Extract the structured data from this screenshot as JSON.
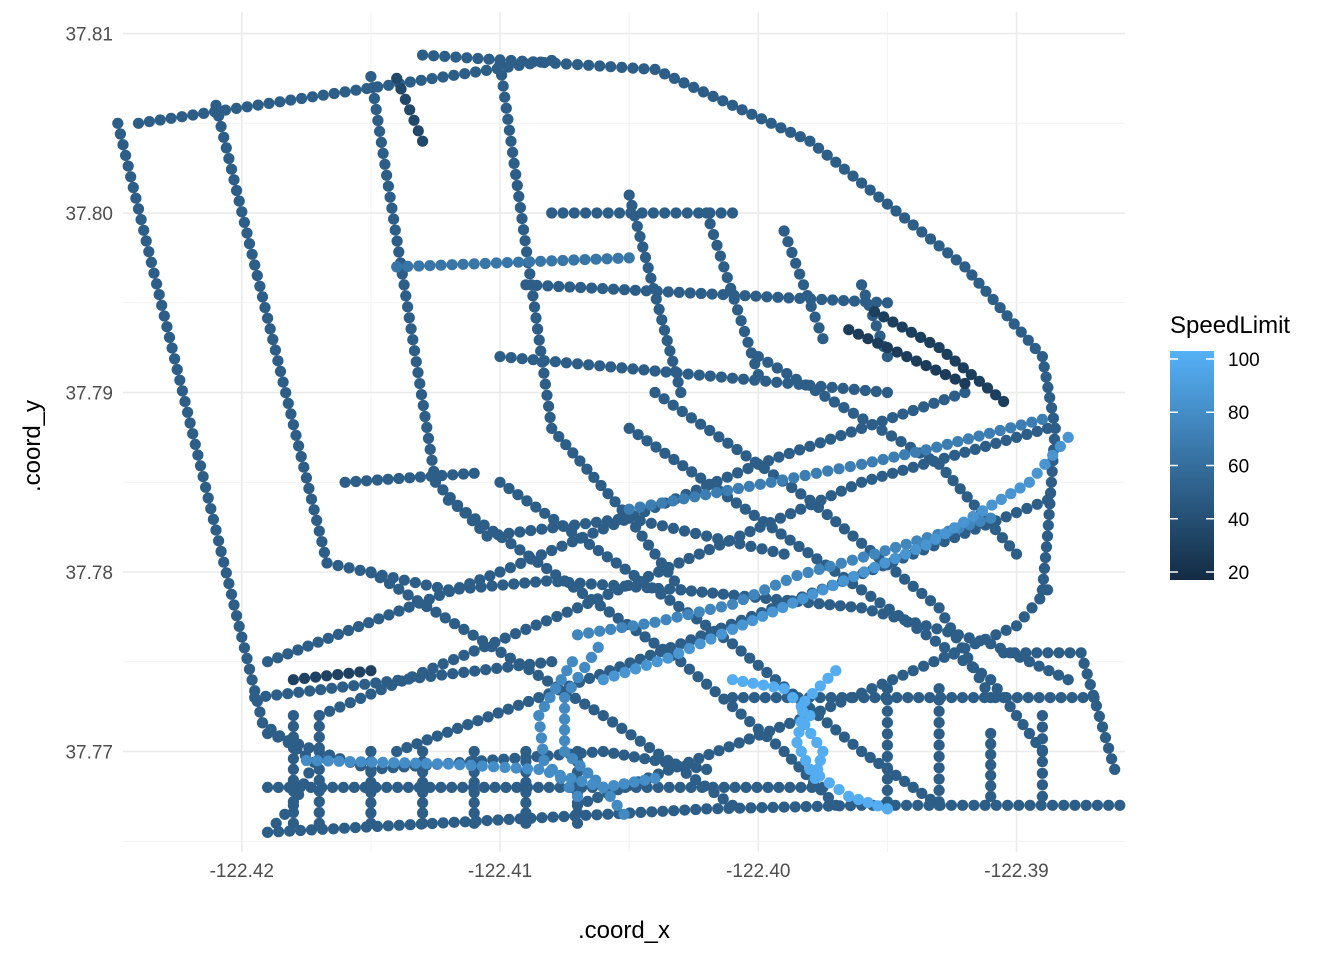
{
  "chart_data": {
    "type": "scatter",
    "title": "",
    "xlabel": ".coord_x",
    "ylabel": ".coord_y",
    "xlim": [
      -122.4246,
      -122.3858
    ],
    "ylim": [
      37.7644,
      37.8112
    ],
    "x_ticks": [
      -122.42,
      -122.41,
      -122.4,
      -122.39
    ],
    "x_tick_labels": [
      "-122.42",
      "-122.41",
      "-122.40",
      "-122.39"
    ],
    "y_ticks": [
      37.77,
      37.78,
      37.79,
      37.8,
      37.81
    ],
    "y_tick_labels": [
      "37.77",
      "37.78",
      "37.79",
      "37.80",
      "37.81"
    ],
    "grid": true,
    "legend": {
      "title": "SpeedLimit",
      "placement": "right",
      "range": [
        17,
        103
      ],
      "breaks": [
        20,
        40,
        60,
        80,
        100
      ],
      "break_labels": [
        "20",
        "40",
        "60",
        "80",
        "100"
      ],
      "color_low": "#132B43",
      "color_high": "#56B1F7"
    },
    "color_by": "SpeedLimit",
    "default_speed": 50,
    "paths": [
      {
        "speed": 50,
        "points": [
          [
            -122.4248,
            37.805
          ],
          [
            -122.4192,
            37.7716
          ]
        ]
      },
      {
        "speed": 50,
        "points": [
          [
            -122.4192,
            37.7716
          ],
          [
            -122.4172,
            37.7694
          ],
          [
            -122.418,
            37.767
          ],
          [
            -122.419,
            37.7655
          ]
        ]
      },
      {
        "speed": 50,
        "points": [
          [
            -122.419,
            37.7655
          ],
          [
            -122.402,
            37.7668
          ],
          [
            -122.396,
            37.767
          ],
          [
            -122.386,
            37.767
          ]
        ]
      },
      {
        "speed": 50,
        "points": [
          [
            -122.424,
            37.805
          ],
          [
            -122.408,
            37.8085
          ]
        ]
      },
      {
        "speed": 50,
        "points": [
          [
            -122.413,
            37.8088
          ],
          [
            -122.404,
            37.808
          ],
          [
            -122.398,
            37.804
          ],
          [
            -122.392,
            37.797
          ],
          [
            -122.389,
            37.792
          ],
          [
            -122.3885,
            37.788
          ],
          [
            -122.3888,
            37.782
          ],
          [
            -122.389,
            37.779
          ]
        ]
      },
      {
        "speed": 50,
        "points": [
          [
            -122.421,
            37.806
          ],
          [
            -122.4167,
            37.7805
          ],
          [
            -122.412,
            37.779
          ],
          [
            -122.4082,
            37.7795
          ],
          [
            -122.403,
            37.779
          ],
          [
            -122.396,
            37.778
          ],
          [
            -122.391,
            37.776
          ],
          [
            -122.388,
            37.774
          ]
        ]
      },
      {
        "speed": 50,
        "points": [
          [
            -122.415,
            37.8076
          ],
          [
            -122.4125,
            37.785
          ],
          [
            -122.4105,
            37.782
          ],
          [
            -122.405,
            37.783
          ],
          [
            -122.403,
            37.779
          ]
        ]
      },
      {
        "speed": 50,
        "points": [
          [
            -122.41,
            37.8083
          ],
          [
            -122.408,
            37.788
          ],
          [
            -122.405,
            37.783
          ],
          [
            -122.399,
            37.781
          ]
        ]
      },
      {
        "speed": 50,
        "points": [
          [
            -122.419,
            37.775
          ],
          [
            -122.41,
            37.78
          ],
          [
            -122.4,
            37.786
          ],
          [
            -122.392,
            37.79
          ]
        ]
      },
      {
        "speed": 50,
        "points": [
          [
            -122.417,
            37.772
          ],
          [
            -122.407,
            37.778
          ],
          [
            -122.396,
            37.785
          ],
          [
            -122.3888,
            37.788
          ]
        ]
      },
      {
        "speed": 50,
        "points": [
          [
            -122.414,
            37.77
          ],
          [
            -122.403,
            37.776
          ],
          [
            -122.394,
            37.781
          ],
          [
            -122.3888,
            37.784
          ]
        ]
      },
      {
        "speed": 50,
        "points": [
          [
            -122.407,
            37.767
          ],
          [
            -122.398,
            37.772
          ],
          [
            -122.39,
            37.777
          ],
          [
            -122.3888,
            37.779
          ]
        ]
      },
      {
        "speed": 50,
        "points": [
          [
            -122.419,
            37.771
          ],
          [
            -122.415,
            37.769
          ],
          [
            -122.406,
            37.77
          ],
          [
            -122.402,
            37.769
          ]
        ]
      },
      {
        "speed": 50,
        "points": [
          [
            -122.419,
            37.768
          ],
          [
            -122.406,
            37.768
          ],
          [
            -122.3975,
            37.768
          ]
        ]
      },
      {
        "speed": 50,
        "points": [
          [
            -122.41,
            37.785
          ],
          [
            -122.401,
            37.776
          ],
          [
            -122.396,
            37.77
          ],
          [
            -122.393,
            37.767
          ]
        ]
      },
      {
        "speed": 50,
        "points": [
          [
            -122.405,
            37.788
          ],
          [
            -122.396,
            37.779
          ],
          [
            -122.391,
            37.774
          ],
          [
            -122.389,
            37.77
          ]
        ]
      },
      {
        "speed": 50,
        "points": [
          [
            -122.415,
            37.78
          ],
          [
            -122.406,
            37.772
          ],
          [
            -122.401,
            37.767
          ]
        ]
      },
      {
        "speed": 50,
        "points": [
          [
            -122.412,
            37.784
          ],
          [
            -122.403,
            37.775
          ],
          [
            -122.399,
            37.77
          ],
          [
            -122.397,
            37.767
          ]
        ]
      },
      {
        "speed": 50,
        "points": [
          [
            -122.404,
            37.79
          ],
          [
            -122.398,
            37.784
          ],
          [
            -122.393,
            37.778
          ],
          [
            -122.391,
            37.773
          ]
        ]
      },
      {
        "speed": 50,
        "points": [
          [
            -122.4,
            37.792
          ],
          [
            -122.393,
            37.786
          ],
          [
            -122.39,
            37.781
          ]
        ]
      },
      {
        "speed": 50,
        "points": [
          [
            -122.405,
            37.801
          ],
          [
            -122.403,
            37.79
          ]
        ]
      },
      {
        "speed": 50,
        "points": [
          [
            -122.402,
            37.8
          ],
          [
            -122.4,
            37.791
          ]
        ]
      },
      {
        "speed": 50,
        "points": [
          [
            -122.399,
            37.799
          ],
          [
            -122.3975,
            37.793
          ]
        ]
      },
      {
        "speed": 50,
        "points": [
          [
            -122.396,
            37.796
          ],
          [
            -122.395,
            37.792
          ]
        ]
      },
      {
        "speed": 50,
        "points": [
          [
            -122.408,
            37.8
          ],
          [
            -122.401,
            37.8
          ]
        ]
      },
      {
        "speed": 50,
        "points": [
          [
            -122.409,
            37.796
          ],
          [
            -122.395,
            37.795
          ]
        ]
      },
      {
        "speed": 50,
        "points": [
          [
            -122.41,
            37.792
          ],
          [
            -122.395,
            37.79
          ]
        ]
      },
      {
        "speed": 50,
        "points": [
          [
            -122.416,
            37.785
          ],
          [
            -122.411,
            37.7855
          ]
        ]
      },
      {
        "speed": 50,
        "points": [
          [
            -122.4195,
            37.773
          ],
          [
            -122.408,
            37.775
          ]
        ]
      },
      {
        "speed": 50,
        "points": [
          [
            -122.401,
            37.773
          ],
          [
            -122.387,
            37.773
          ]
        ]
      },
      {
        "speed": 50,
        "points": [
          [
            -122.3905,
            37.7755
          ],
          [
            -122.3875,
            37.7755
          ],
          [
            -122.3862,
            37.769
          ]
        ]
      },
      {
        "speed": 50,
        "points": [
          [
            -122.391,
            37.771
          ],
          [
            -122.391,
            37.7675
          ]
        ]
      },
      {
        "speed": 50,
        "points": [
          [
            -122.389,
            37.772
          ],
          [
            -122.389,
            37.7675
          ]
        ]
      },
      {
        "speed": 50,
        "points": [
          [
            -122.395,
            37.7735
          ],
          [
            -122.395,
            37.7672
          ]
        ]
      },
      {
        "speed": 50,
        "points": [
          [
            -122.393,
            37.7735
          ],
          [
            -122.393,
            37.7672
          ]
        ]
      },
      {
        "speed": 50,
        "points": [
          [
            -122.415,
            37.77
          ],
          [
            -122.415,
            37.766
          ]
        ]
      },
      {
        "speed": 50,
        "points": [
          [
            -122.413,
            37.77
          ],
          [
            -122.413,
            37.766
          ]
        ]
      },
      {
        "speed": 50,
        "points": [
          [
            -122.411,
            37.77
          ],
          [
            -122.411,
            37.766
          ]
        ]
      },
      {
        "speed": 50,
        "points": [
          [
            -122.409,
            37.77
          ],
          [
            -122.409,
            37.766
          ]
        ]
      },
      {
        "speed": 50,
        "points": [
          [
            -122.407,
            37.77
          ],
          [
            -122.407,
            37.766
          ]
        ]
      },
      {
        "speed": 50,
        "points": [
          [
            -122.418,
            37.772
          ],
          [
            -122.418,
            37.766
          ]
        ]
      },
      {
        "speed": 50,
        "points": [
          [
            -122.417,
            37.772
          ],
          [
            -122.417,
            37.766
          ]
        ]
      },
      {
        "speed": 30,
        "points": [
          [
            -122.3955,
            37.7945
          ],
          [
            -122.393,
            37.7925
          ],
          [
            -122.3905,
            37.7895
          ]
        ]
      },
      {
        "speed": 28,
        "points": [
          [
            -122.3965,
            37.7935
          ],
          [
            -122.392,
            37.7905
          ]
        ]
      },
      {
        "speed": 35,
        "points": [
          [
            -122.414,
            37.8075
          ],
          [
            -122.413,
            37.804
          ]
        ]
      },
      {
        "speed": 32,
        "points": [
          [
            -122.418,
            37.774
          ],
          [
            -122.415,
            37.7745
          ]
        ]
      },
      {
        "speed": 65,
        "points": [
          [
            -122.414,
            37.797
          ],
          [
            -122.405,
            37.7975
          ]
        ]
      },
      {
        "speed": 70,
        "points": [
          [
            -122.405,
            37.7835
          ],
          [
            -122.3995,
            37.785
          ],
          [
            -122.396,
            37.786
          ],
          [
            -122.3935,
            37.7868
          ],
          [
            -122.389,
            37.7885
          ]
        ]
      },
      {
        "speed": 75,
        "points": [
          [
            -122.407,
            37.7765
          ],
          [
            -122.404,
            37.7772
          ],
          [
            -122.401,
            37.7782
          ],
          [
            -122.3985,
            37.7798
          ],
          [
            -122.3955,
            37.781
          ],
          [
            -122.391,
            37.783
          ]
        ]
      },
      {
        "speed": 85,
        "points": [
          [
            -122.406,
            37.774
          ],
          [
            -122.4035,
            37.7752
          ],
          [
            -122.401,
            37.7768
          ],
          [
            -122.3975,
            37.779
          ],
          [
            -122.3935,
            37.7815
          ],
          [
            -122.3895,
            37.785
          ],
          [
            -122.388,
            37.7875
          ]
        ]
      },
      {
        "speed": 78,
        "points": [
          [
            -122.4062,
            37.7758
          ],
          [
            -122.4075,
            37.773
          ],
          [
            -122.4075,
            37.77
          ],
          [
            -122.406,
            37.768
          ],
          [
            -122.4052,
            37.7665
          ]
        ]
      },
      {
        "speed": 78,
        "points": [
          [
            -122.4072,
            37.775
          ],
          [
            -122.4085,
            37.772
          ],
          [
            -122.4083,
            37.7695
          ],
          [
            -122.407,
            37.7675
          ]
        ]
      },
      {
        "speed": 80,
        "points": [
          [
            -122.4175,
            37.7695
          ],
          [
            -122.412,
            37.7693
          ],
          [
            -122.4085,
            37.769
          ],
          [
            -122.406,
            37.768
          ],
          [
            -122.404,
            37.7685
          ]
        ]
      },
      {
        "speed": 100,
        "points": [
          [
            -122.397,
            37.7745
          ],
          [
            -122.3982,
            37.7728
          ],
          [
            -122.3985,
            37.7705
          ],
          [
            -122.398,
            37.769
          ],
          [
            -122.3965,
            37.7675
          ],
          [
            -122.395,
            37.7668
          ]
        ]
      },
      {
        "speed": 100,
        "points": [
          [
            -122.401,
            37.774
          ],
          [
            -122.399,
            37.7735
          ],
          [
            -122.398,
            37.772
          ]
        ]
      },
      {
        "speed": 100,
        "points": [
          [
            -122.3982,
            37.7715
          ],
          [
            -122.3975,
            37.77
          ],
          [
            -122.3978,
            37.7685
          ]
        ]
      }
    ]
  }
}
